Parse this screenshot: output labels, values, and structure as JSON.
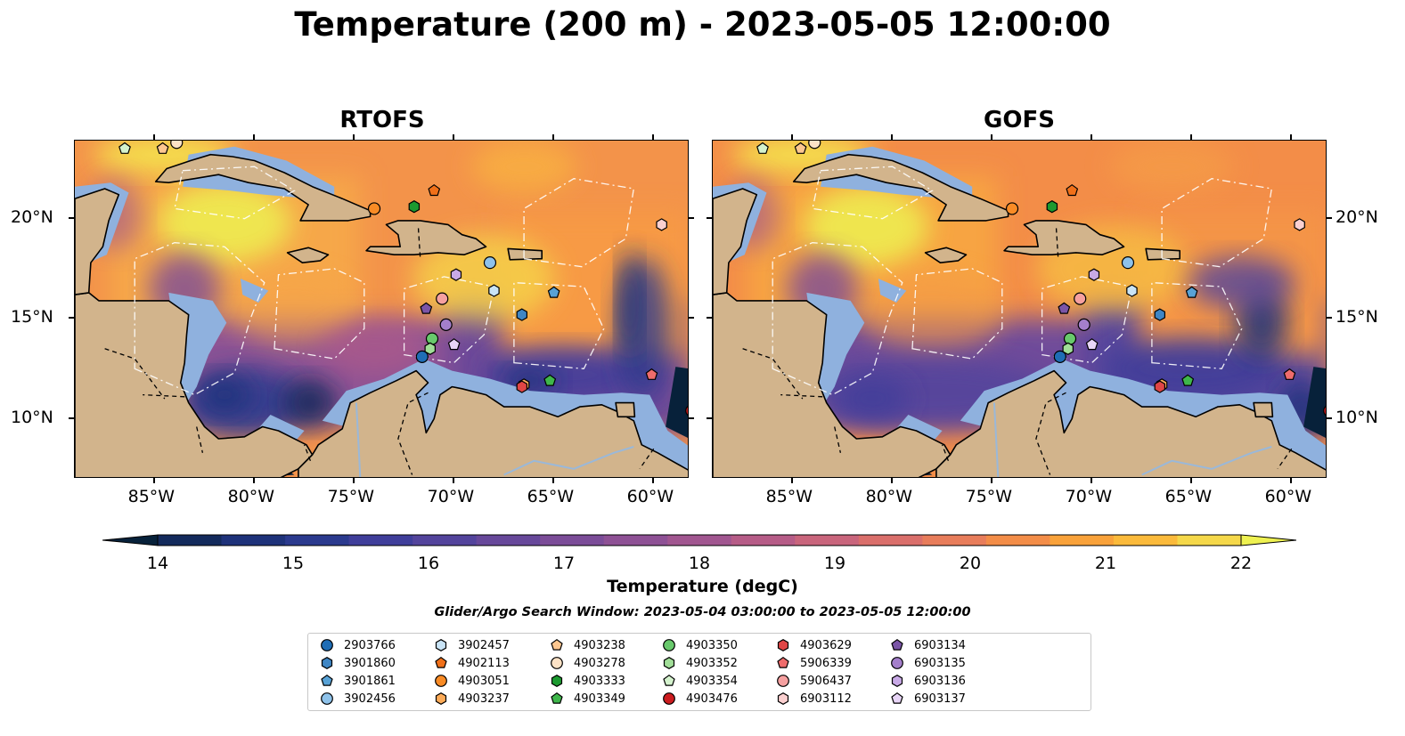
{
  "title": "Temperature (200 m) - 2023-05-05 12:00:00",
  "panels": [
    {
      "id": "rtofs",
      "title": "RTOFS"
    },
    {
      "id": "gofs",
      "title": "GOFS"
    }
  ],
  "x_ticks": [
    "85°W",
    "80°W",
    "75°W",
    "70°W",
    "65°W",
    "60°W"
  ],
  "y_ticks": [
    "20°N",
    "15°N",
    "10°N"
  ],
  "colorbar": {
    "label": "Temperature (degC)",
    "ticks": [
      "14",
      "15",
      "16",
      "17",
      "18",
      "19",
      "20",
      "21",
      "22"
    ],
    "min": 14,
    "max": 22,
    "colors": [
      "#07213a",
      "#132a5c",
      "#1e327a",
      "#2b3a8e",
      "#3f3e9a",
      "#53449c",
      "#67489a",
      "#7b4c98",
      "#8e5195",
      "#a15690",
      "#b65c87",
      "#c9657c",
      "#da6f6b",
      "#e87d5b",
      "#f38d48",
      "#f9a23a",
      "#fbba3b",
      "#f5d84a",
      "#eef151"
    ],
    "extend": "both"
  },
  "search_window": "Glider/Argo Search Window: 2023-05-04 03:00:00 to 2023-05-05 12:00:00",
  "land_color": "#d2b48c",
  "shelf_color": "#8fb1de",
  "legend": [
    {
      "id": "2903766",
      "marker": "circle",
      "color": "#1f6db5"
    },
    {
      "id": "3901860",
      "marker": "hexagon",
      "color": "#3f86c4"
    },
    {
      "id": "3901861",
      "marker": "pentagon",
      "color": "#58a2d6"
    },
    {
      "id": "3902456",
      "marker": "circle",
      "color": "#8ec2ea"
    },
    {
      "id": "3902457",
      "marker": "hexagon",
      "color": "#c9e4f6"
    },
    {
      "id": "4902113",
      "marker": "pentagon",
      "color": "#f07019"
    },
    {
      "id": "4903051",
      "marker": "circle",
      "color": "#f98b25"
    },
    {
      "id": "4903237",
      "marker": "hexagon",
      "color": "#fcab58"
    },
    {
      "id": "4903238",
      "marker": "pentagon",
      "color": "#fdc790"
    },
    {
      "id": "4903278",
      "marker": "circle",
      "color": "#fde2c6"
    },
    {
      "id": "4903333",
      "marker": "hexagon",
      "color": "#1c9a30"
    },
    {
      "id": "4903349",
      "marker": "pentagon",
      "color": "#3fb74b"
    },
    {
      "id": "4903350",
      "marker": "circle",
      "color": "#68c96c"
    },
    {
      "id": "4903352",
      "marker": "hexagon",
      "color": "#a1de98"
    },
    {
      "id": "4903354",
      "marker": "pentagon",
      "color": "#d4f2cd"
    },
    {
      "id": "4903476",
      "marker": "circle",
      "color": "#cc1c1f"
    },
    {
      "id": "4903629",
      "marker": "hexagon",
      "color": "#e04545"
    },
    {
      "id": "5906339",
      "marker": "pentagon",
      "color": "#ef6c6c"
    },
    {
      "id": "5906437",
      "marker": "circle",
      "color": "#f6a0a0"
    },
    {
      "id": "6903112",
      "marker": "hexagon",
      "color": "#fbd0d0"
    },
    {
      "id": "6903134",
      "marker": "pentagon",
      "color": "#7b55a7"
    },
    {
      "id": "6903135",
      "marker": "circle",
      "color": "#a47fcb"
    },
    {
      "id": "6903136",
      "marker": "hexagon",
      "color": "#c8a9e6"
    },
    {
      "id": "6903137",
      "marker": "pentagon",
      "color": "#e8d5f7"
    }
  ],
  "floats": [
    {
      "id": "2903766",
      "lon": -71.6,
      "lat": 13.1
    },
    {
      "id": "3901860",
      "lon": -66.6,
      "lat": 15.2
    },
    {
      "id": "3901861",
      "lon": -65.0,
      "lat": 16.3
    },
    {
      "id": "3902456",
      "lon": -68.2,
      "lat": 17.8
    },
    {
      "id": "3902457",
      "lon": -68.0,
      "lat": 16.4
    },
    {
      "id": "4902113",
      "lon": -71.0,
      "lat": 21.4
    },
    {
      "id": "4903051",
      "lon": -74.0,
      "lat": 20.5
    },
    {
      "id": "4903237",
      "lon": -66.5,
      "lat": 11.7
    },
    {
      "id": "4903238",
      "lon": -84.6,
      "lat": 23.5
    },
    {
      "id": "4903278",
      "lon": -83.9,
      "lat": 23.8
    },
    {
      "id": "4903333",
      "lon": -72.0,
      "lat": 20.6
    },
    {
      "id": "4903349",
      "lon": -65.2,
      "lat": 11.9
    },
    {
      "id": "4903350",
      "lon": -71.1,
      "lat": 14.0
    },
    {
      "id": "4903352",
      "lon": -71.2,
      "lat": 13.5
    },
    {
      "id": "4903354",
      "lon": -86.5,
      "lat": 23.5
    },
    {
      "id": "4903476",
      "lon": -58.1,
      "lat": 10.4
    },
    {
      "id": "4903629",
      "lon": -66.6,
      "lat": 11.6
    },
    {
      "id": "5906339",
      "lon": -60.1,
      "lat": 12.2
    },
    {
      "id": "5906437",
      "lon": -70.6,
      "lat": 16.0
    },
    {
      "id": "6903112",
      "lon": -59.6,
      "lat": 19.7
    },
    {
      "id": "6903134",
      "lon": -71.4,
      "lat": 15.5
    },
    {
      "id": "6903135",
      "lon": -70.4,
      "lat": 14.7
    },
    {
      "id": "6903136",
      "lon": -69.9,
      "lat": 17.2
    },
    {
      "id": "6903137",
      "lon": -70.0,
      "lat": 13.7
    }
  ]
}
